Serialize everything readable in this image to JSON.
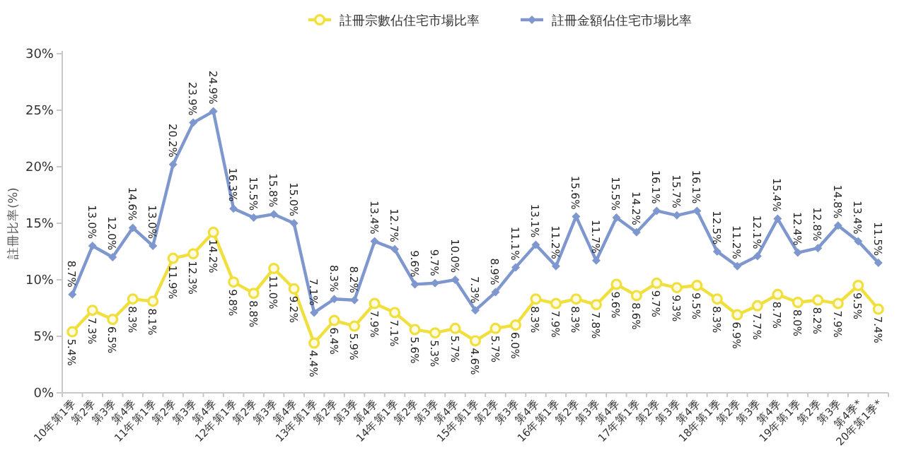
{
  "chart_data": {
    "type": "line",
    "ylabel": "註冊比率(%)",
    "legend": "top",
    "grid": false,
    "line_style": "solid",
    "categories": [
      "10年第1季",
      "第2季",
      "第3季",
      "第4季",
      "11年第1季",
      "第2季",
      "第3季",
      "第4季",
      "12年第1季",
      "第2季",
      "第3季",
      "第4季",
      "13年第1季",
      "第2季",
      "第3季",
      "第4季",
      "14年第1季",
      "第2季",
      "第3季",
      "第4季",
      "15年第1季",
      "第2季",
      "第3季",
      "第4季",
      "16年第1季",
      "第2季",
      "第3季",
      "第4季",
      "17年第1季",
      "第2季",
      "第3季",
      "第4季",
      "18年第1季",
      "第2季",
      "第3季",
      "第4季",
      "19年第1季",
      "第2季",
      "第3季",
      "第4季*",
      "20年第1季*"
    ],
    "ylim": [
      0,
      30
    ],
    "yticks": [
      {
        "value": 0,
        "label": "0%"
      },
      {
        "value": 5,
        "label": "5%"
      },
      {
        "value": 10,
        "label": "10%"
      },
      {
        "value": 15,
        "label": "15%"
      },
      {
        "value": 20,
        "label": "20%"
      },
      {
        "value": 25,
        "label": "25%"
      },
      {
        "value": 30,
        "label": "30%"
      }
    ],
    "series": [
      {
        "name": "註冊宗數佔住宅市場比率",
        "color": "#f0df3c",
        "marker": "circle",
        "values": [
          5.4,
          7.3,
          6.5,
          8.3,
          8.1,
          11.9,
          12.3,
          14.2,
          9.8,
          8.8,
          11.0,
          9.2,
          4.4,
          6.4,
          5.9,
          7.9,
          7.1,
          5.6,
          5.3,
          5.7,
          4.6,
          5.7,
          6.0,
          8.3,
          7.9,
          8.3,
          7.8,
          9.6,
          8.6,
          9.7,
          9.3,
          9.5,
          8.3,
          6.9,
          7.7,
          8.7,
          8.0,
          8.2,
          7.9,
          9.5,
          7.4
        ],
        "value_labels": [
          "5.4%",
          "7.3%",
          "6.5%",
          "8.3%",
          "8.1%",
          "11.9%",
          "12.3%",
          "14.2%",
          "9.8%",
          "8.8%",
          "11.0%",
          "9.2%",
          "4.4%",
          "6.4%",
          "5.9%",
          "7.9%",
          "7.1%",
          "5.6%",
          "5.3%",
          "5.7%",
          "4.6%",
          "5.7%",
          "6.0%",
          "8.3%",
          "7.9%",
          "8.3%",
          "7.8%",
          "9.6%",
          "8.6%",
          "9.7%",
          "9.3%",
          "9.5%",
          "8.3%",
          "6.9%",
          "7.7%",
          "8.7%",
          "8.0%",
          "8.2%",
          "7.9%",
          "9.5%",
          "7.4%"
        ]
      },
      {
        "name": "註冊金額佔住宅市場比率",
        "color": "#7f97cf",
        "marker": "diamond",
        "values": [
          8.7,
          13.0,
          12.0,
          14.6,
          13.0,
          20.2,
          23.9,
          24.9,
          16.3,
          15.5,
          15.8,
          15.0,
          7.1,
          8.3,
          8.2,
          13.4,
          12.7,
          9.6,
          9.7,
          10.0,
          7.3,
          8.9,
          11.1,
          13.1,
          11.2,
          15.6,
          11.7,
          15.5,
          14.2,
          16.1,
          15.7,
          16.1,
          12.5,
          11.2,
          12.1,
          15.4,
          12.4,
          12.8,
          14.8,
          13.4,
          11.5
        ],
        "value_labels": [
          "8.7%",
          "13.0%",
          "12.0%",
          "14.6%",
          "13.0%",
          "20.2%",
          "23.9%",
          "24.9%",
          "16.3%",
          "15.5%",
          "15.8%",
          "15.0%",
          "7.1%",
          "8.3%",
          "8.2%",
          "13.4%",
          "12.7%",
          "9.6%",
          "9.7%",
          "10.0%",
          "7.3%",
          "8.9%",
          "11.1%",
          "13.1%",
          "11.2%",
          "15.6%",
          "11.7%",
          "15.5%",
          "14.2%",
          "16.1%",
          "15.7%",
          "16.1%",
          "12.5%",
          "11.2%",
          "12.1%",
          "15.4%",
          "12.4%",
          "12.8%",
          "14.8%",
          "13.4%",
          "11.5%"
        ]
      }
    ]
  }
}
